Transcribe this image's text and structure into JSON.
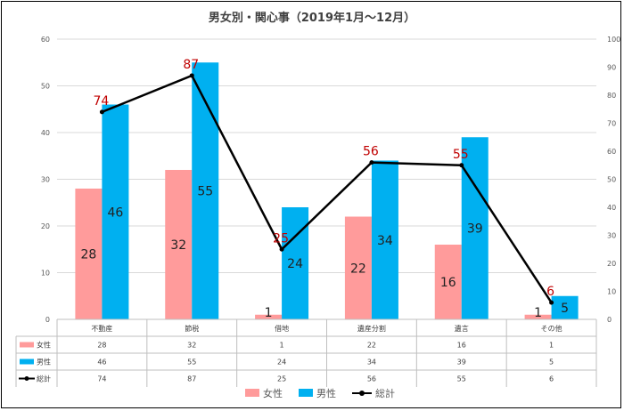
{
  "chart_data": {
    "type": "bar",
    "title": "男女別・関心事（2019年1月～12月）",
    "categories": [
      "不動産",
      "節税",
      "借地",
      "遺産分割",
      "遺言",
      "その他"
    ],
    "series": [
      {
        "name": "女性",
        "kind": "bar",
        "axis": "left",
        "color": "#FF9B9B",
        "values": [
          28,
          32,
          1,
          22,
          16,
          1
        ]
      },
      {
        "name": "男性",
        "kind": "bar",
        "axis": "left",
        "color": "#00B0F0",
        "values": [
          46,
          55,
          24,
          34,
          39,
          5
        ]
      },
      {
        "name": "総計",
        "kind": "line",
        "axis": "right",
        "color": "#000000",
        "values": [
          74,
          87,
          25,
          56,
          55,
          6
        ]
      }
    ],
    "y_left": {
      "min": 0,
      "max": 60,
      "step": 10
    },
    "y_right": {
      "min": 0,
      "max": 100,
      "step": 10
    },
    "grid": true,
    "legend": "bottom",
    "data_table": true,
    "label_colors": {
      "bars": "#222222",
      "line": "#C00000"
    }
  }
}
